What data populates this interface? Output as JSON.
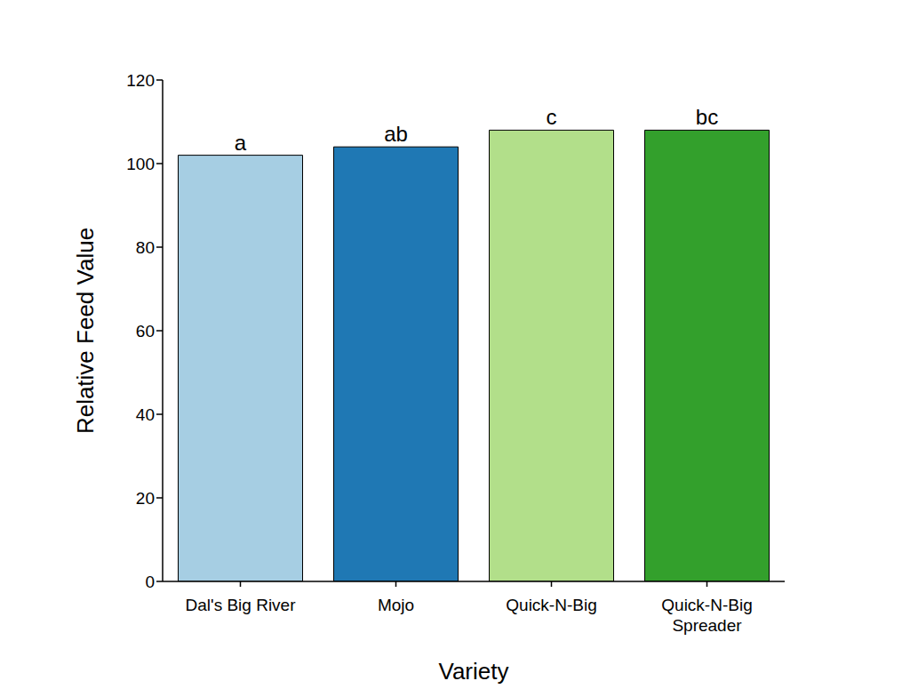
{
  "chart_data": {
    "type": "bar",
    "x_label": "Variety",
    "y_label": "Relative Feed Value",
    "categories": [
      "Dal's Big River",
      "Mojo",
      "Quick-N-Big",
      "Quick-N-Big Spreader"
    ],
    "values": [
      102,
      104,
      108,
      108
    ],
    "annotations": [
      "a",
      "ab",
      "c",
      "bc"
    ],
    "colors": [
      "#a6cee3",
      "#1f78b4",
      "#b2df8a",
      "#33a02c"
    ],
    "ylim": [
      0,
      120
    ],
    "yticks": [
      0,
      20,
      40,
      60,
      80,
      100,
      120
    ],
    "grid": false
  }
}
